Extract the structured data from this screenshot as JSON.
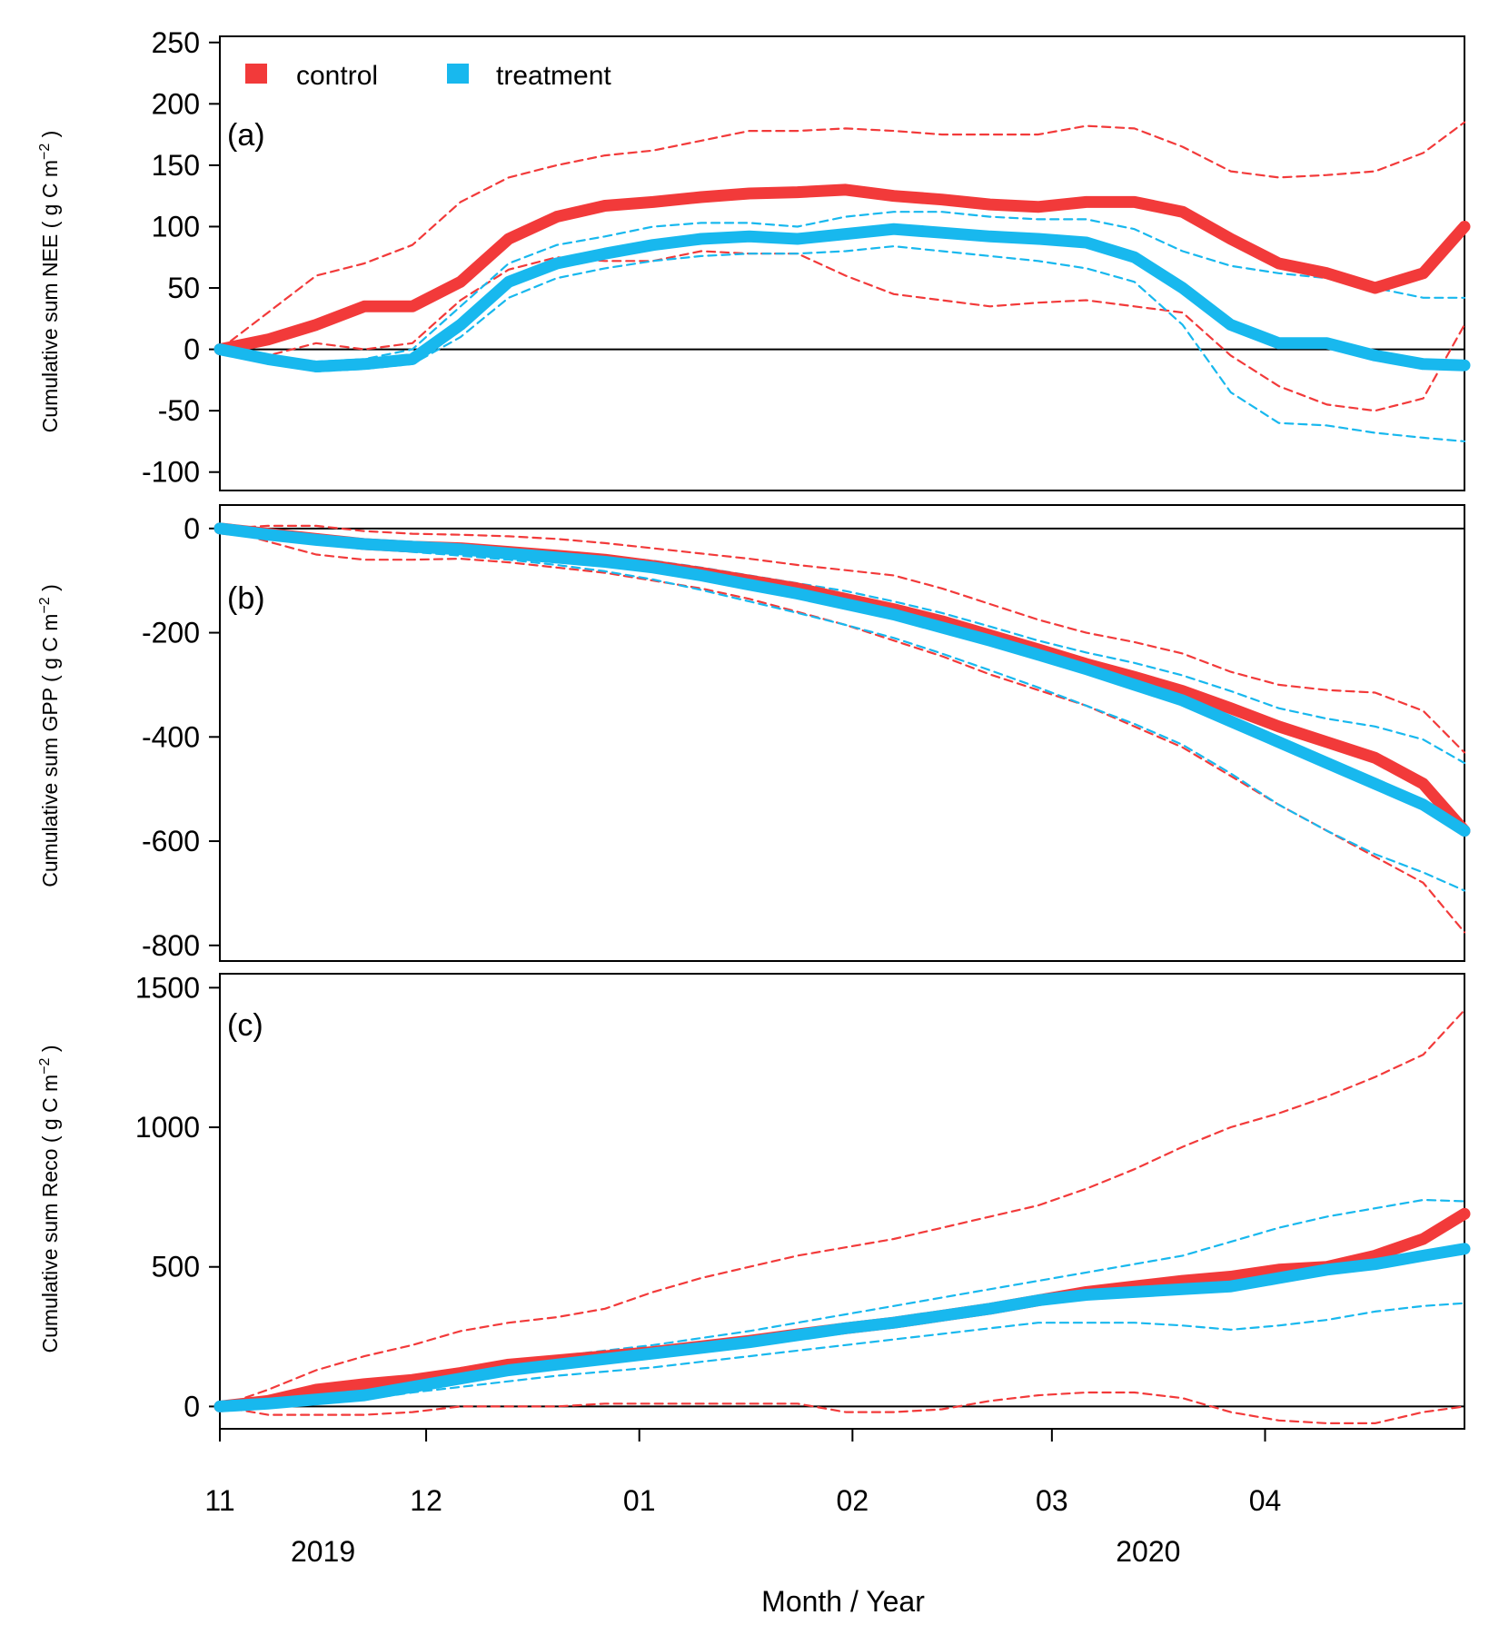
{
  "legend": [
    {
      "label": "control",
      "color": "#F23A3A"
    },
    {
      "label": "treatment",
      "color": "#18B8EE"
    }
  ],
  "xaxis": {
    "title": "Month / Year",
    "month_ticks": [
      {
        "label": "11",
        "date": "2019-11-01"
      },
      {
        "label": "12",
        "date": "2019-12-01"
      },
      {
        "label": "01",
        "date": "2020-01-01"
      },
      {
        "label": "02",
        "date": "2020-02-01"
      },
      {
        "label": "03",
        "date": "2020-03-01"
      },
      {
        "label": "04",
        "date": "2020-04-01"
      }
    ],
    "year_labels": [
      {
        "label": "2019",
        "date": "2019-11-16"
      },
      {
        "label": "2020",
        "date": "2020-03-15"
      }
    ],
    "range": [
      "2019-11-01",
      "2020-04-30"
    ]
  },
  "chart_data": [
    {
      "panel": "(a)",
      "type": "line",
      "ylabel": "Cumulative sum NEE ( g C m",
      "ylabel_sup": "−2",
      "ylabel_tail": " )",
      "ylim": [
        -115,
        255
      ],
      "yticks": [
        250,
        200,
        150,
        100,
        50,
        0,
        -50,
        -100
      ],
      "zero_line": true,
      "legend_position": "top-left",
      "x": [
        "2019-11-01",
        "2019-11-08",
        "2019-11-15",
        "2019-11-22",
        "2019-11-29",
        "2019-12-06",
        "2019-12-13",
        "2019-12-20",
        "2019-12-27",
        "2020-01-03",
        "2020-01-10",
        "2020-01-17",
        "2020-01-24",
        "2020-01-31",
        "2020-02-07",
        "2020-02-14",
        "2020-02-21",
        "2020-02-28",
        "2020-03-06",
        "2020-03-13",
        "2020-03-20",
        "2020-03-27",
        "2020-04-03",
        "2020-04-10",
        "2020-04-17",
        "2020-04-24",
        "2020-04-30"
      ],
      "series": [
        {
          "name": "control",
          "role": "mean",
          "color": "#F23A3A",
          "values": [
            0,
            8,
            20,
            35,
            35,
            55,
            90,
            108,
            117,
            120,
            124,
            127,
            128,
            130,
            125,
            122,
            118,
            116,
            120,
            120,
            112,
            90,
            70,
            62,
            50,
            62,
            100
          ]
        },
        {
          "name": "control",
          "role": "upper",
          "color": "#F23A3A",
          "values": [
            0,
            30,
            60,
            70,
            85,
            120,
            140,
            150,
            158,
            162,
            170,
            178,
            178,
            180,
            178,
            175,
            175,
            175,
            182,
            180,
            165,
            145,
            140,
            142,
            145,
            160,
            185
          ]
        },
        {
          "name": "control",
          "role": "lower",
          "color": "#F23A3A",
          "values": [
            0,
            -5,
            5,
            0,
            5,
            40,
            65,
            75,
            72,
            72,
            80,
            78,
            78,
            60,
            45,
            40,
            35,
            38,
            40,
            35,
            30,
            -5,
            -30,
            -45,
            -50,
            -40,
            20
          ]
        },
        {
          "name": "treatment",
          "role": "mean",
          "color": "#18B8EE",
          "values": [
            0,
            -8,
            -14,
            -12,
            -8,
            20,
            55,
            70,
            78,
            85,
            90,
            92,
            90,
            94,
            98,
            95,
            92,
            90,
            87,
            75,
            50,
            20,
            5,
            5,
            -5,
            -12,
            -13
          ]
        },
        {
          "name": "treatment",
          "role": "upper",
          "color": "#18B8EE",
          "values": [
            0,
            -5,
            -10,
            -8,
            0,
            35,
            70,
            85,
            92,
            100,
            103,
            103,
            100,
            108,
            112,
            112,
            108,
            106,
            106,
            98,
            80,
            68,
            62,
            58,
            50,
            42,
            42
          ]
        },
        {
          "name": "treatment",
          "role": "lower",
          "color": "#18B8EE",
          "values": [
            0,
            -10,
            -18,
            -16,
            -12,
            10,
            42,
            58,
            66,
            72,
            76,
            78,
            78,
            80,
            84,
            80,
            76,
            72,
            66,
            55,
            20,
            -35,
            -60,
            -62,
            -68,
            -72,
            -75
          ]
        }
      ]
    },
    {
      "panel": "(b)",
      "type": "line",
      "ylabel": "Cumulative sum GPP ( g C m",
      "ylabel_sup": "−2",
      "ylabel_tail": " )",
      "ylim": [
        -830,
        45
      ],
      "yticks": [
        0,
        -200,
        -400,
        -600,
        -800
      ],
      "zero_line": true,
      "x": [
        "2019-11-01",
        "2019-11-08",
        "2019-11-15",
        "2019-11-22",
        "2019-11-29",
        "2019-12-06",
        "2019-12-13",
        "2019-12-20",
        "2019-12-27",
        "2020-01-03",
        "2020-01-10",
        "2020-01-17",
        "2020-01-24",
        "2020-01-31",
        "2020-02-07",
        "2020-02-14",
        "2020-02-21",
        "2020-02-28",
        "2020-03-06",
        "2020-03-13",
        "2020-03-20",
        "2020-03-27",
        "2020-04-03",
        "2020-04-10",
        "2020-04-17",
        "2020-04-24",
        "2020-04-30"
      ],
      "series": [
        {
          "name": "control",
          "role": "mean",
          "color": "#F23A3A",
          "values": [
            0,
            -10,
            -20,
            -30,
            -35,
            -38,
            -45,
            -52,
            -60,
            -72,
            -85,
            -100,
            -115,
            -135,
            -155,
            -178,
            -205,
            -232,
            -260,
            -285,
            -312,
            -345,
            -380,
            -410,
            -440,
            -490,
            -580
          ]
        },
        {
          "name": "control",
          "role": "upper",
          "color": "#F23A3A",
          "values": [
            0,
            5,
            5,
            -5,
            -10,
            -12,
            -15,
            -20,
            -28,
            -38,
            -48,
            -58,
            -70,
            -80,
            -90,
            -115,
            -145,
            -175,
            -200,
            -218,
            -240,
            -275,
            -300,
            -310,
            -315,
            -350,
            -430
          ]
        },
        {
          "name": "control",
          "role": "lower",
          "color": "#F23A3A",
          "values": [
            0,
            -25,
            -50,
            -60,
            -60,
            -58,
            -65,
            -75,
            -85,
            -100,
            -115,
            -135,
            -160,
            -185,
            -215,
            -245,
            -280,
            -310,
            -340,
            -380,
            -420,
            -475,
            -530,
            -580,
            -630,
            -680,
            -775
          ]
        },
        {
          "name": "treatment",
          "role": "mean",
          "color": "#18B8EE",
          "values": [
            0,
            -12,
            -22,
            -30,
            -35,
            -40,
            -48,
            -56,
            -64,
            -75,
            -90,
            -108,
            -125,
            -145,
            -165,
            -190,
            -215,
            -242,
            -270,
            -300,
            -330,
            -370,
            -410,
            -450,
            -490,
            -530,
            -580
          ]
        },
        {
          "name": "treatment",
          "role": "upper",
          "color": "#18B8EE",
          "values": [
            0,
            -5,
            -15,
            -25,
            -28,
            -32,
            -38,
            -44,
            -52,
            -62,
            -75,
            -90,
            -105,
            -120,
            -140,
            -162,
            -188,
            -215,
            -238,
            -258,
            -282,
            -312,
            -345,
            -365,
            -380,
            -405,
            -450
          ]
        },
        {
          "name": "treatment",
          "role": "lower",
          "color": "#18B8EE",
          "values": [
            0,
            -18,
            -30,
            -38,
            -45,
            -52,
            -60,
            -70,
            -82,
            -98,
            -118,
            -140,
            -162,
            -185,
            -210,
            -240,
            -272,
            -305,
            -340,
            -375,
            -415,
            -470,
            -530,
            -580,
            -625,
            -660,
            -695
          ]
        }
      ]
    },
    {
      "panel": "(c)",
      "type": "line",
      "ylabel": "Cumulative sum Reco ( g C m",
      "ylabel_sup": "−2",
      "ylabel_tail": " )",
      "ylim": [
        -80,
        1550
      ],
      "yticks": [
        1500,
        1000,
        500,
        0
      ],
      "zero_line": true,
      "x": [
        "2019-11-01",
        "2019-11-08",
        "2019-11-15",
        "2019-11-22",
        "2019-11-29",
        "2019-12-06",
        "2019-12-13",
        "2019-12-20",
        "2019-12-27",
        "2020-01-03",
        "2020-01-10",
        "2020-01-17",
        "2020-01-24",
        "2020-01-31",
        "2020-02-07",
        "2020-02-14",
        "2020-02-21",
        "2020-02-28",
        "2020-03-06",
        "2020-03-13",
        "2020-03-20",
        "2020-03-27",
        "2020-04-03",
        "2020-04-10",
        "2020-04-17",
        "2020-04-24",
        "2020-04-30"
      ],
      "series": [
        {
          "name": "control",
          "role": "mean",
          "color": "#F23A3A",
          "values": [
            0,
            20,
            60,
            80,
            95,
            120,
            150,
            165,
            180,
            195,
            215,
            235,
            258,
            280,
            300,
            325,
            350,
            380,
            410,
            430,
            450,
            465,
            490,
            500,
            540,
            600,
            690
          ]
        },
        {
          "name": "control",
          "role": "upper",
          "color": "#F23A3A",
          "values": [
            0,
            60,
            130,
            180,
            220,
            270,
            300,
            320,
            350,
            410,
            460,
            500,
            540,
            570,
            600,
            640,
            680,
            720,
            780,
            850,
            930,
            1000,
            1050,
            1110,
            1180,
            1260,
            1420
          ]
        },
        {
          "name": "control",
          "role": "lower",
          "color": "#F23A3A",
          "values": [
            0,
            -30,
            -30,
            -30,
            -20,
            0,
            0,
            0,
            10,
            10,
            10,
            10,
            10,
            -20,
            -20,
            -10,
            20,
            40,
            50,
            50,
            30,
            -20,
            -50,
            -60,
            -60,
            -20,
            0
          ]
        },
        {
          "name": "treatment",
          "role": "mean",
          "color": "#18B8EE",
          "values": [
            0,
            10,
            25,
            40,
            70,
            100,
            130,
            150,
            170,
            190,
            210,
            230,
            255,
            280,
            300,
            325,
            350,
            380,
            400,
            410,
            420,
            430,
            460,
            490,
            510,
            540,
            565
          ]
        },
        {
          "name": "treatment",
          "role": "upper",
          "color": "#18B8EE",
          "values": [
            0,
            15,
            35,
            55,
            90,
            130,
            160,
            180,
            200,
            220,
            245,
            270,
            300,
            330,
            360,
            390,
            420,
            450,
            480,
            510,
            540,
            590,
            640,
            680,
            710,
            740,
            735
          ]
        },
        {
          "name": "treatment",
          "role": "lower",
          "color": "#18B8EE",
          "values": [
            0,
            5,
            15,
            25,
            50,
            70,
            90,
            110,
            125,
            140,
            160,
            180,
            200,
            220,
            240,
            260,
            280,
            300,
            300,
            300,
            290,
            275,
            290,
            310,
            340,
            360,
            370
          ]
        }
      ]
    }
  ]
}
